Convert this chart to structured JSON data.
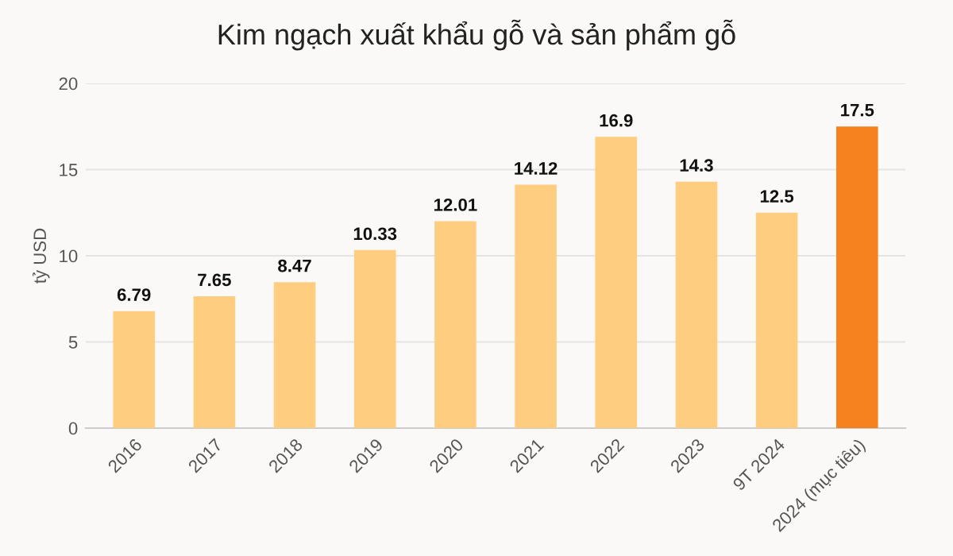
{
  "chart_data": {
    "type": "bar",
    "title": "Kim ngạch xuất khẩu gỗ và sản phẩm gỗ",
    "ylabel": "tỷ USD",
    "categories": [
      "2016",
      "2017",
      "2018",
      "2019",
      "2020",
      "2021",
      "2022",
      "2023",
      "9T 2024",
      "2024 (mục tiêu)"
    ],
    "values": [
      6.79,
      7.65,
      8.47,
      10.33,
      12.01,
      14.12,
      16.9,
      14.3,
      12.5,
      17.5
    ],
    "colors": [
      "#ffcd80",
      "#ffcd80",
      "#ffcd80",
      "#ffcd80",
      "#ffcd80",
      "#ffcd80",
      "#ffcd80",
      "#ffcd80",
      "#ffcd80",
      "#f5821f"
    ],
    "ylim": [
      0,
      20
    ],
    "yticks": [
      0,
      5,
      10,
      15,
      20
    ],
    "grid": "y",
    "data_labels": true
  }
}
